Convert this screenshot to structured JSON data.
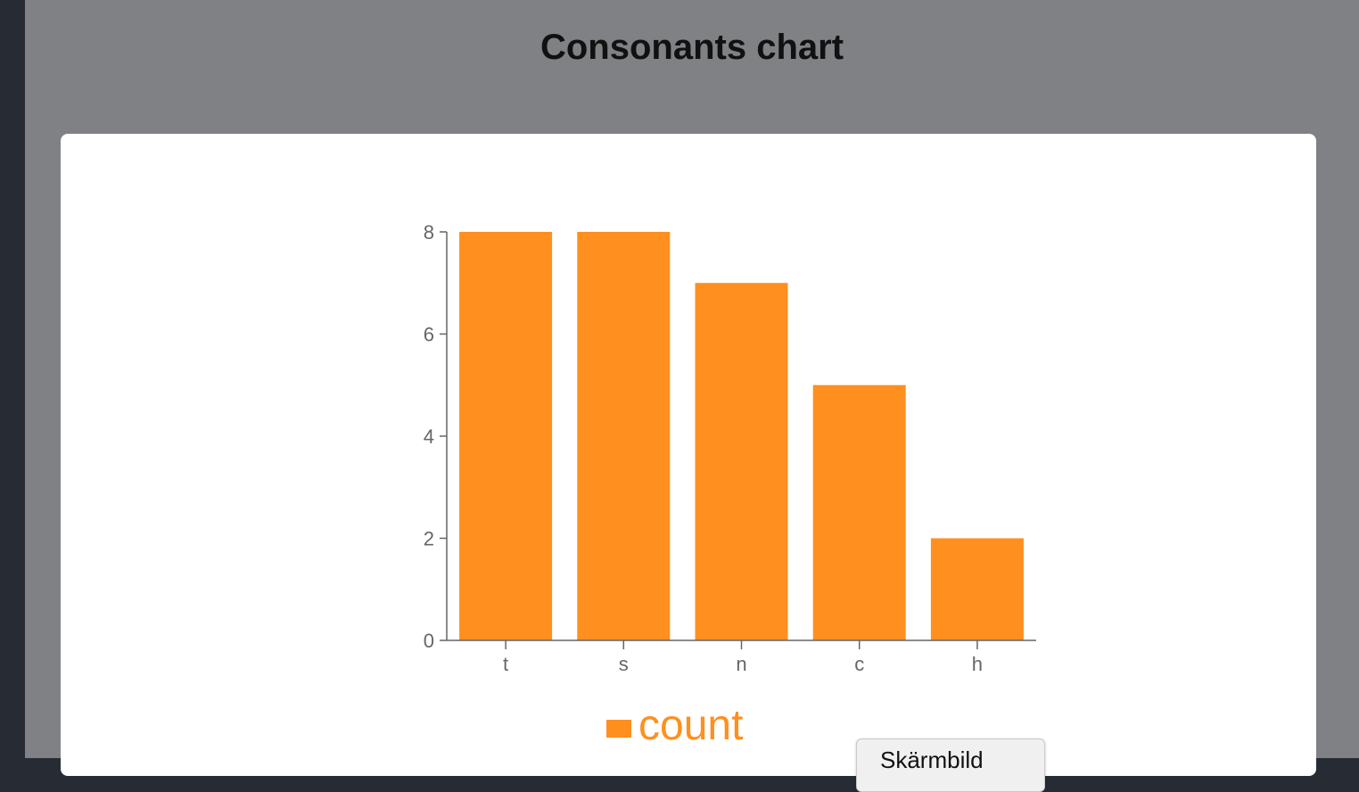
{
  "page": {
    "title": "Consonants chart"
  },
  "colors": {
    "bar": "#ff8f1f",
    "axis": "#666666",
    "tick_text": "#666666"
  },
  "chart_data": {
    "type": "bar",
    "categories": [
      "t",
      "s",
      "n",
      "c",
      "h"
    ],
    "series": [
      {
        "name": "count",
        "values": [
          8,
          8,
          7,
          5,
          2
        ]
      }
    ],
    "ylim": [
      0,
      8
    ],
    "yticks": [
      0,
      2,
      4,
      6,
      8
    ],
    "legend": "bottom",
    "grid": false
  },
  "save_button": {
    "label": "Skärmbild"
  }
}
